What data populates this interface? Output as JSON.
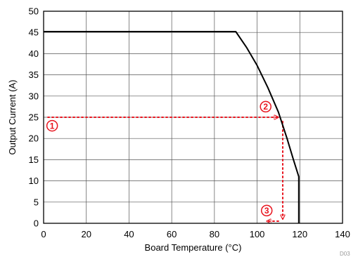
{
  "chart_data": {
    "type": "line",
    "title": "",
    "xlabel": "Board Temperature (°C)",
    "ylabel": "Output Current (A)",
    "xlim": [
      0,
      140
    ],
    "ylim": [
      0,
      50
    ],
    "xticks": [
      0,
      20,
      40,
      60,
      80,
      100,
      120,
      140
    ],
    "yticks": [
      0,
      5,
      10,
      15,
      20,
      25,
      30,
      35,
      40,
      45,
      50
    ],
    "grid": true,
    "series": [
      {
        "color": "#000000",
        "points": [
          [
            0,
            45.2
          ],
          [
            90,
            45.2
          ],
          [
            95,
            41.5
          ],
          [
            100,
            37.2
          ],
          [
            105,
            32.0
          ],
          [
            110,
            26.2
          ],
          [
            114,
            20.0
          ],
          [
            117,
            15.0
          ],
          [
            119.5,
            11.0
          ],
          [
            119.5,
            0
          ]
        ]
      }
    ],
    "annotations": {
      "color": "#e8141e",
      "path1": [
        [
          2,
          25
        ],
        [
          110,
          25
        ]
      ],
      "path2": [
        [
          112,
          24
        ],
        [
          112,
          1
        ]
      ],
      "path3": [
        [
          110,
          0.5
        ],
        [
          104.5,
          0.5
        ]
      ],
      "markers": [
        {
          "label": "1",
          "x": 4,
          "y": 23
        },
        {
          "label": "2",
          "x": 104,
          "y": 27.5
        },
        {
          "label": "3",
          "x": 104.5,
          "y": 3
        }
      ]
    },
    "figure_id": "D03"
  }
}
